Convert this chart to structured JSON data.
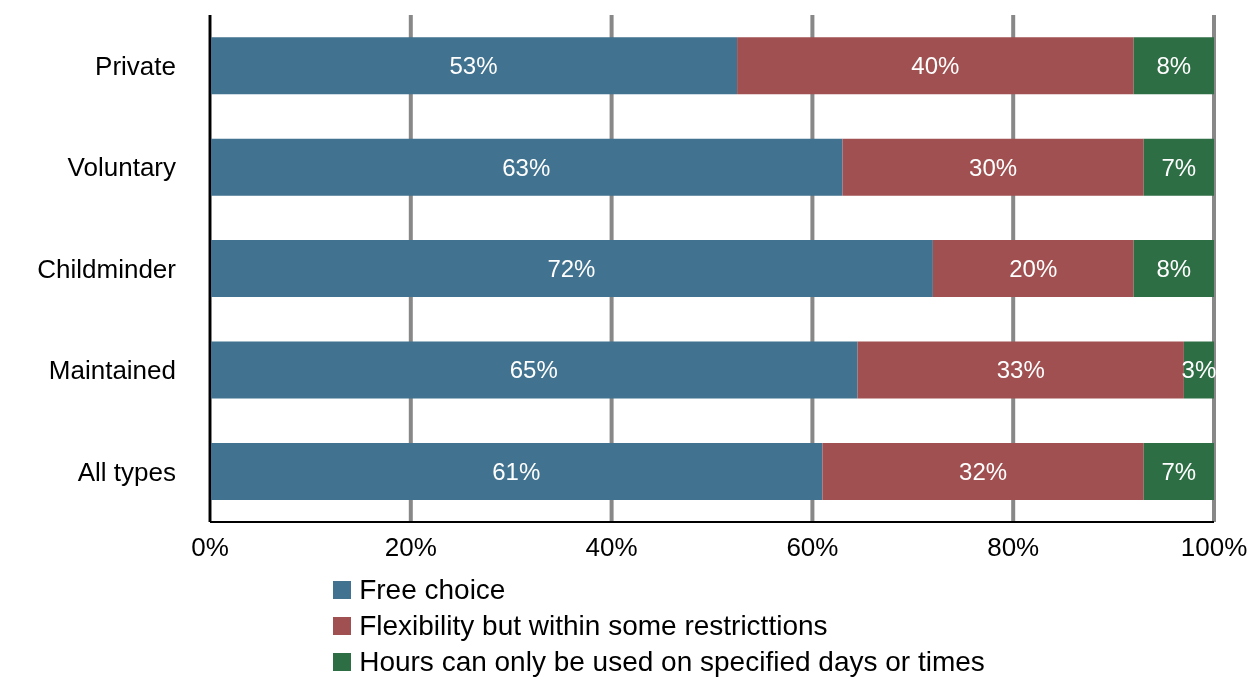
{
  "chart_data": {
    "type": "bar",
    "orientation": "horizontal",
    "stacked": true,
    "categories": [
      "Private",
      "Voluntary",
      "Childminder",
      "Maintained",
      "All types"
    ],
    "series": [
      {
        "name": "Free choice",
        "color": "#41728f",
        "values": [
          52.5,
          63,
          72,
          64.5,
          61
        ],
        "value_labels": [
          "53%",
          "63%",
          "72%",
          "65%",
          "61%"
        ]
      },
      {
        "name": "Flexibility but within some restricttions",
        "color": "#a05050",
        "values": [
          39.5,
          30,
          20,
          32.5,
          32
        ],
        "value_labels": [
          "40%",
          "30%",
          "20%",
          "33%",
          "32%"
        ]
      },
      {
        "name": "Hours can only be used on specified days or times",
        "color": "#2e6e45",
        "values": [
          8,
          7,
          8,
          3,
          7
        ],
        "value_labels": [
          "8%",
          "7%",
          "8%",
          "3%",
          "7%"
        ]
      }
    ],
    "xlim": [
      0,
      100
    ],
    "xticks": [
      {
        "value": 0,
        "label": "0%"
      },
      {
        "value": 20,
        "label": "20%"
      },
      {
        "value": 40,
        "label": "40%"
      },
      {
        "value": 60,
        "label": "60%"
      },
      {
        "value": 80,
        "label": "80%"
      },
      {
        "value": 100,
        "label": "100%"
      }
    ],
    "grid": "x",
    "legend": "bottom"
  }
}
